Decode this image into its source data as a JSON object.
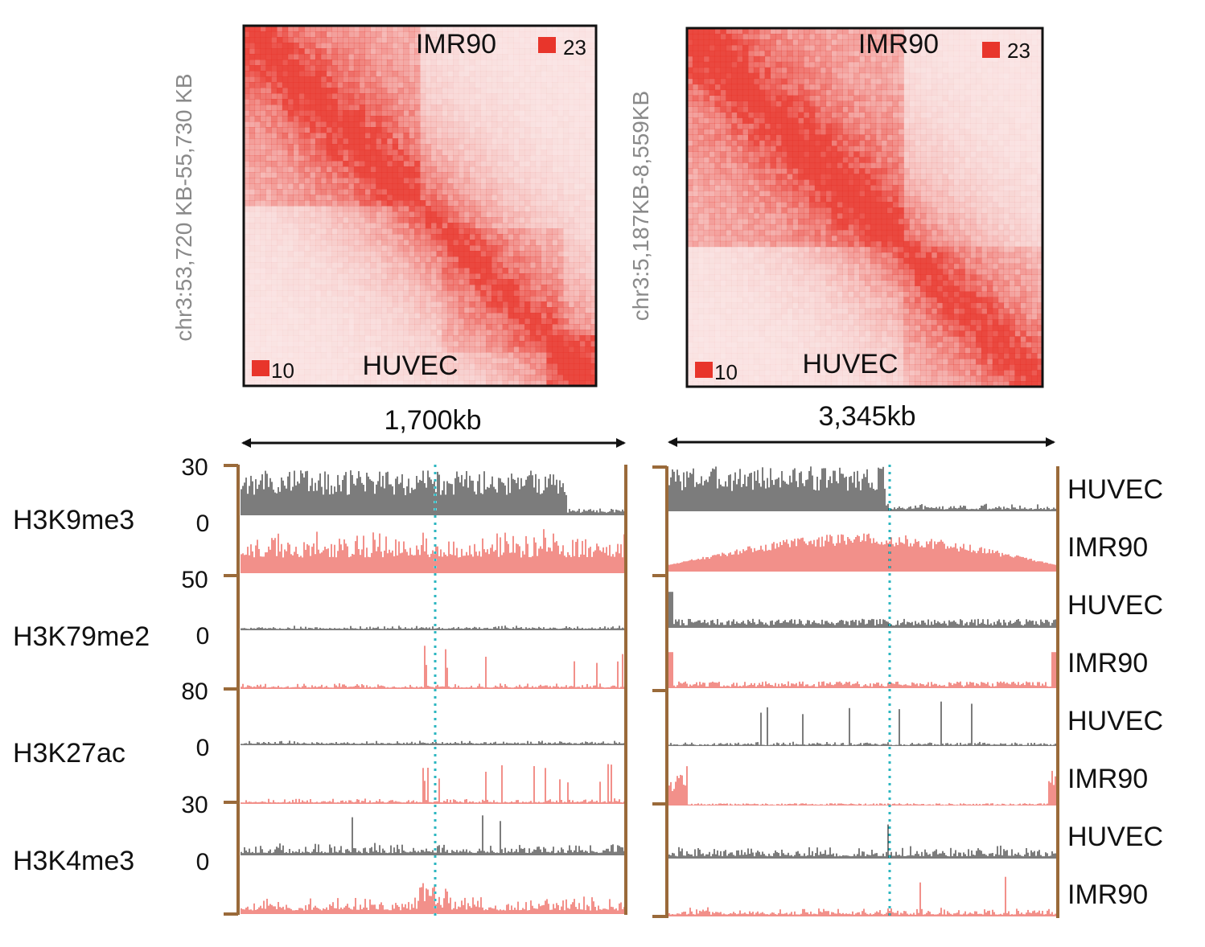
{
  "colors": {
    "hic_red": "#e8352b",
    "track_black": "#111111",
    "track_red": "#e8352b",
    "frame_brown": "#9a6a3a",
    "guide_cyan": "#2bb6c0",
    "gray_text": "#8a8a8a"
  },
  "panels": [
    {
      "id": "left",
      "region_label": "chr3:53,720 KB-55,730 KB",
      "map_top_label": "IMR90",
      "map_bottom_label": "HUVEC",
      "scale_max": "23",
      "scale_min": "10",
      "span_label": "1,700kb"
    },
    {
      "id": "right",
      "region_label": "chr3:5,187KB-8,559KB",
      "map_top_label": "IMR90",
      "map_bottom_label": "HUVEC",
      "scale_max": "23",
      "scale_min": "10",
      "span_label": "3,345kb"
    }
  ],
  "marks": [
    {
      "name": "H3K9me3",
      "ymax": "30",
      "ymin": "0"
    },
    {
      "name": "H3K79me2",
      "ymax": "50",
      "ymin": "0"
    },
    {
      "name": "H3K27ac",
      "ymax": "80",
      "ymin": "0"
    },
    {
      "name": "H3K4me3",
      "ymax": "30",
      "ymin": "0"
    }
  ],
  "cell_lines": [
    "HUVEC",
    "IMR90",
    "HUVEC",
    "IMR90",
    "HUVEC",
    "IMR90",
    "HUVEC",
    "IMR90"
  ]
}
